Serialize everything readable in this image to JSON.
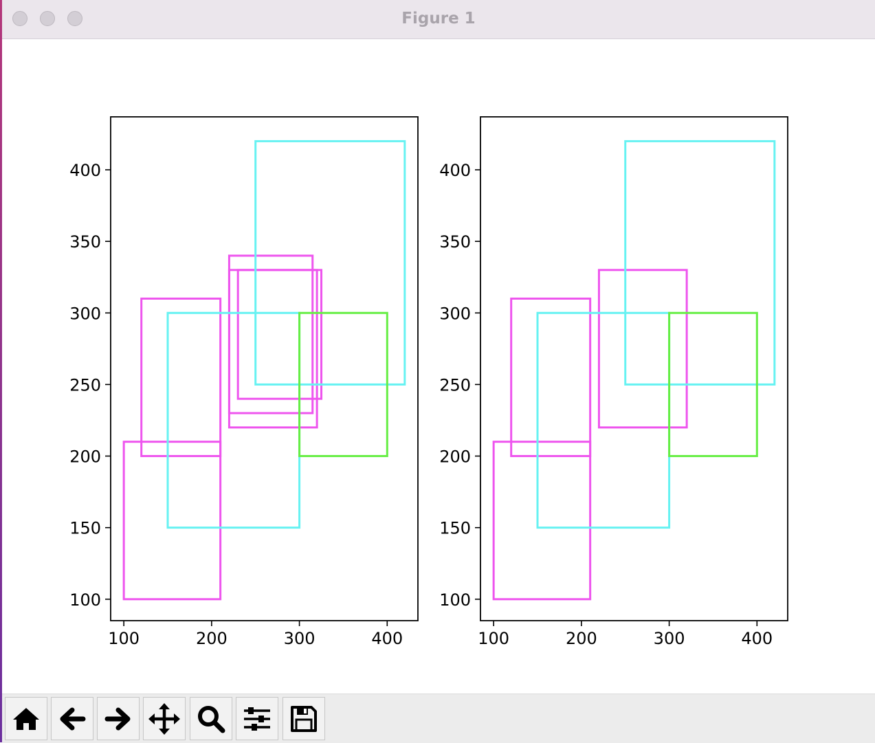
{
  "window": {
    "title": "Figure 1"
  },
  "colors": {
    "magenta": "#ee55ee",
    "cyan": "#66f2f2",
    "green": "#66ee44"
  },
  "toolbar": {
    "buttons": [
      {
        "name": "home-button",
        "icon": "home-icon"
      },
      {
        "name": "back-button",
        "icon": "arrow-left-icon"
      },
      {
        "name": "forward-button",
        "icon": "arrow-right-icon"
      },
      {
        "name": "pan-button",
        "icon": "move-icon"
      },
      {
        "name": "zoom-button",
        "icon": "magnifier-icon"
      },
      {
        "name": "configure-subplots-button",
        "icon": "sliders-icon"
      },
      {
        "name": "save-button",
        "icon": "floppy-disk-icon"
      }
    ]
  },
  "chart_data": [
    {
      "type": "rectangles",
      "title": "",
      "xlabel": "",
      "ylabel": "",
      "xlim": [
        85,
        435
      ],
      "ylim": [
        85,
        437
      ],
      "xticks": [
        100,
        200,
        300,
        400
      ],
      "yticks": [
        100,
        150,
        200,
        250,
        300,
        350,
        400
      ],
      "rectangles": [
        {
          "x0": 100,
          "y0": 100,
          "x1": 210,
          "y1": 210,
          "color": "magenta"
        },
        {
          "x0": 120,
          "y0": 200,
          "x1": 210,
          "y1": 310,
          "color": "magenta"
        },
        {
          "x0": 220,
          "y0": 230,
          "x1": 315,
          "y1": 340,
          "color": "magenta"
        },
        {
          "x0": 220,
          "y0": 220,
          "x1": 320,
          "y1": 330,
          "color": "magenta"
        },
        {
          "x0": 230,
          "y0": 240,
          "x1": 325,
          "y1": 330,
          "color": "magenta"
        },
        {
          "x0": 150,
          "y0": 150,
          "x1": 300,
          "y1": 300,
          "color": "cyan"
        },
        {
          "x0": 250,
          "y0": 250,
          "x1": 420,
          "y1": 420,
          "color": "cyan"
        },
        {
          "x0": 300,
          "y0": 200,
          "x1": 400,
          "y1": 300,
          "color": "green"
        }
      ]
    },
    {
      "type": "rectangles",
      "title": "",
      "xlabel": "",
      "ylabel": "",
      "xlim": [
        85,
        435
      ],
      "ylim": [
        85,
        437
      ],
      "xticks": [
        100,
        200,
        300,
        400
      ],
      "yticks": [
        100,
        150,
        200,
        250,
        300,
        350,
        400
      ],
      "rectangles": [
        {
          "x0": 100,
          "y0": 100,
          "x1": 210,
          "y1": 210,
          "color": "magenta"
        },
        {
          "x0": 120,
          "y0": 200,
          "x1": 210,
          "y1": 310,
          "color": "magenta"
        },
        {
          "x0": 220,
          "y0": 220,
          "x1": 320,
          "y1": 330,
          "color": "magenta"
        },
        {
          "x0": 150,
          "y0": 150,
          "x1": 300,
          "y1": 300,
          "color": "cyan"
        },
        {
          "x0": 250,
          "y0": 250,
          "x1": 420,
          "y1": 420,
          "color": "cyan"
        },
        {
          "x0": 300,
          "y0": 200,
          "x1": 400,
          "y1": 300,
          "color": "green"
        }
      ]
    }
  ]
}
